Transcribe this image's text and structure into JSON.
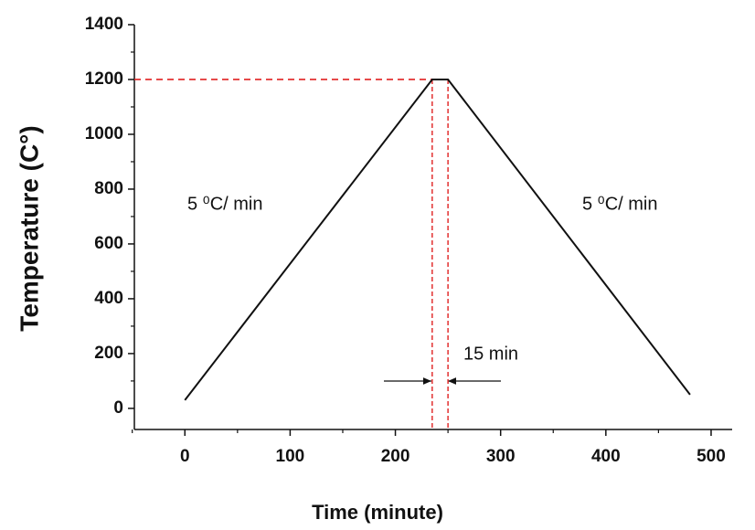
{
  "chart_data": {
    "type": "line",
    "x_label": "Time (minute)",
    "y_label": "Temperature (C°)",
    "x": [
      0,
      235,
      250,
      480
    ],
    "series": [
      {
        "color": "#111111",
        "values": [
          30,
          1200,
          1200,
          50
        ]
      }
    ],
    "xlim": [
      -48,
      520
    ],
    "ylim": [
      -77,
      1400
    ],
    "xticks": [
      0,
      100,
      200,
      300,
      400,
      500
    ],
    "yticks": [
      0,
      200,
      400,
      600,
      800,
      1000,
      1200,
      1400
    ],
    "xminorticks": [
      -50,
      50,
      150,
      250,
      350,
      450
    ],
    "yminorticks": [
      100,
      300,
      500,
      700,
      900,
      1100,
      1300
    ],
    "reference_color": "#e02020",
    "hline": {
      "y": 1200,
      "x_end": 235
    },
    "vlines": [
      235,
      250
    ],
    "annotations": [
      "5 ⁰C/ min",
      "5 ⁰C/ min",
      "15 min"
    ]
  }
}
